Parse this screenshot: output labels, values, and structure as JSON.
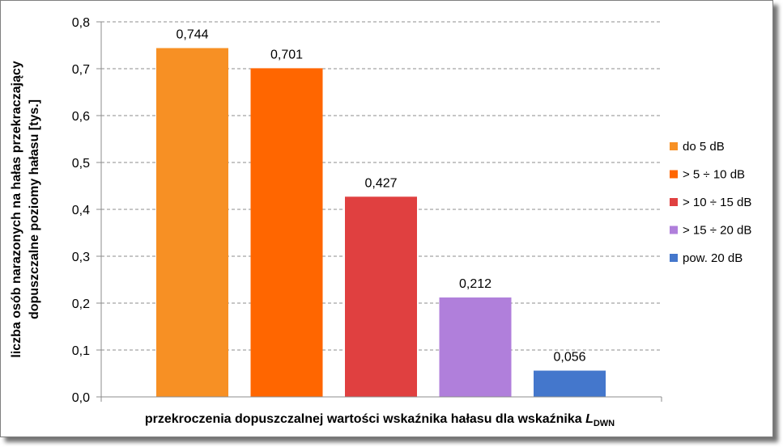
{
  "chart_data": {
    "type": "bar",
    "categories": [
      "do 5 dB",
      "> 5 ÷ 10 dB",
      "> 10 ÷ 15 dB",
      "> 15 ÷ 20 dB",
      "pow.  20 dB"
    ],
    "values": [
      0.744,
      0.701,
      0.427,
      0.212,
      0.056
    ],
    "value_labels": [
      "0,744",
      "0,701",
      "0,427",
      "0,212",
      "0,056"
    ],
    "colors": [
      "#f79024",
      "#ff6600",
      "#e04040",
      "#b07fdb",
      "#4477cc"
    ],
    "ylim": [
      0,
      0.8
    ],
    "yticks": [
      0,
      0.1,
      0.2,
      0.3,
      0.4,
      0.5,
      0.6,
      0.7,
      0.8
    ],
    "ytick_labels": [
      "0,0",
      "0,1",
      "0,2",
      "0,3",
      "0,4",
      "0,5",
      "0,6",
      "0,7",
      "0,8"
    ],
    "ylabel_line1": "liczba osób narazonych na hałas przekraczający",
    "ylabel_line2": "dopuszczalne poziomy hałasu [tys.]",
    "xlabel_main": "przekroczenia dopuszczalnej wartości wskaźnika hałasu dla wskaźnika ",
    "xlabel_symbol": "L",
    "xlabel_subscript": "DWN",
    "legend": {
      "position": "right",
      "entries": [
        "do 5 dB",
        "> 5 ÷ 10 dB",
        "> 10 ÷ 15 dB",
        "> 15 ÷ 20 dB",
        "pow.  20 dB"
      ]
    },
    "grid": true
  }
}
